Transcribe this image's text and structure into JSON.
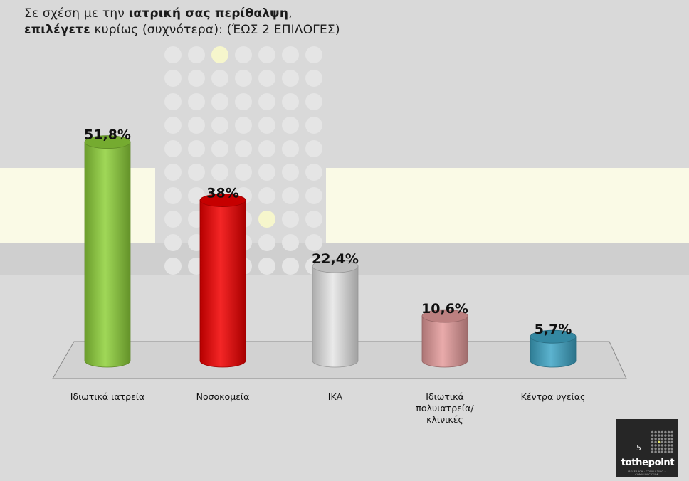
{
  "title": {
    "part1": "Σε σχέση με την ",
    "part1_bold": "ιατρική σας περίθαλψη",
    "part1_end": ",",
    "part2_bold": "επιλέγετε",
    "part2": "  κυρίως (συχνότερα): (ΈΩΣ 2 ΕΠΙΛΟΓΕΣ)"
  },
  "chart_data": {
    "type": "bar",
    "categories": [
      "Ιδιωτικά ιατρεία",
      "Νοσοκομεία",
      "ΙΚΑ",
      "Ιδιωτικά πολυιατρεία/κλινικές",
      "Κέντρα υγείας"
    ],
    "values": [
      51.8,
      38,
      22.4,
      10.6,
      5.7
    ],
    "data_labels": [
      "51,8%",
      "38%",
      "22,4%",
      "10,6%",
      "5,7%"
    ],
    "ylim": [
      0,
      60
    ],
    "colors": [
      "#8fd13a",
      "#f20000",
      "#e6e6e6",
      "#e59c9c",
      "#3fa6c6"
    ],
    "grid": false,
    "legend": "none"
  },
  "footer": {
    "slide_number": "5",
    "brand": "tothepoint",
    "brand_tagline": "RESEARCH · CONSULTING · COMMUNICATION"
  }
}
